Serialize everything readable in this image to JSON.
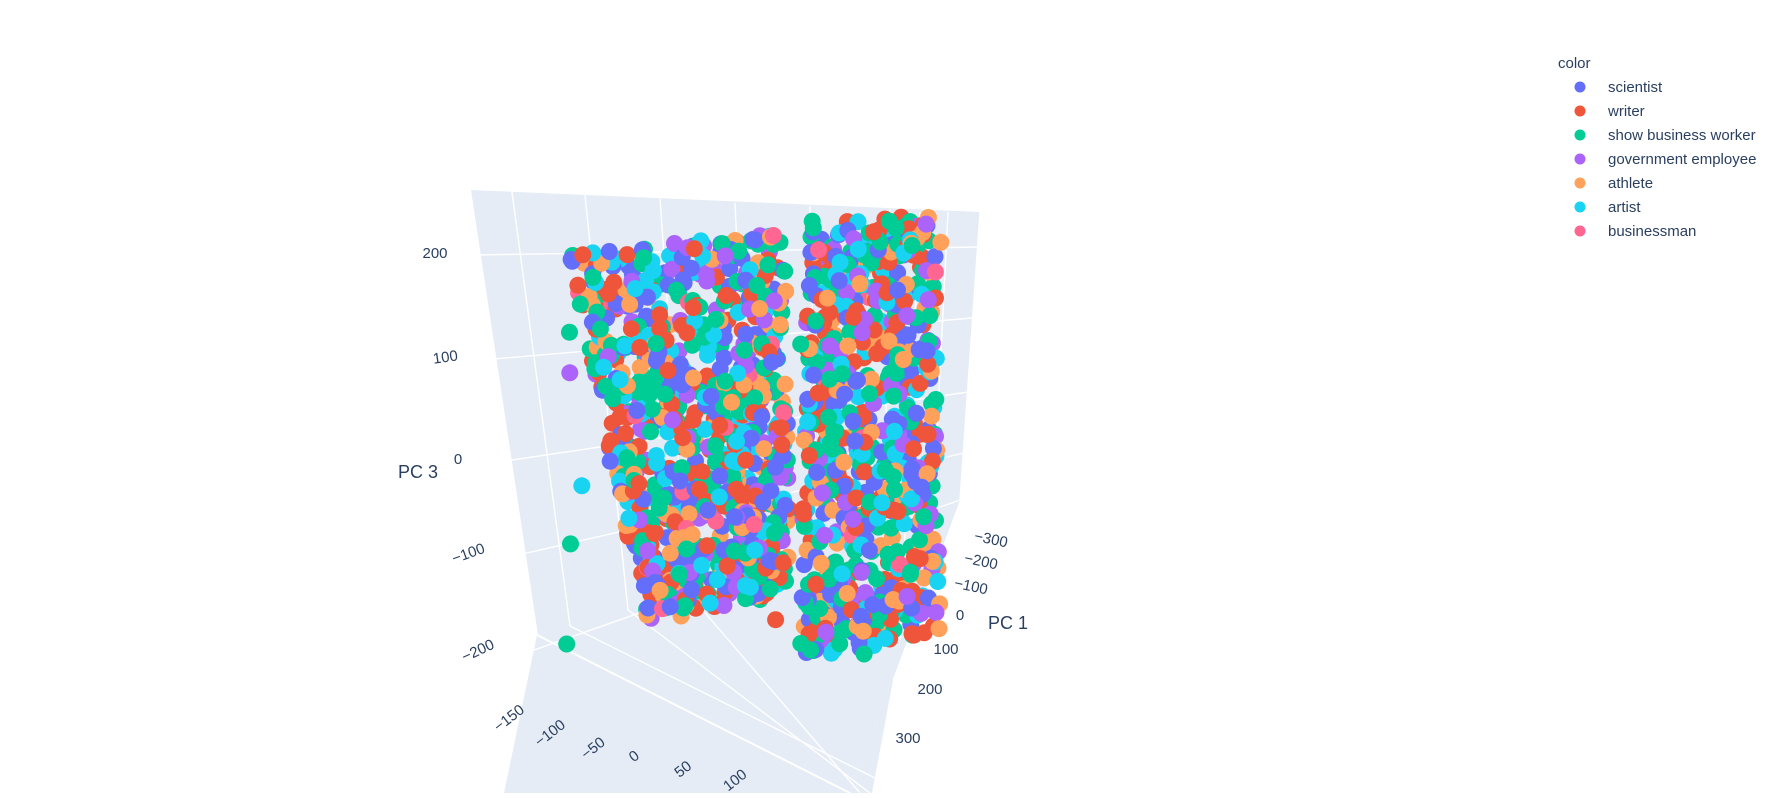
{
  "chart_data": {
    "type": "scatter",
    "dimensions": 3,
    "legend": {
      "title": "color",
      "placement": "top-right",
      "entries": [
        {
          "name": "scientist",
          "color": "#636efa"
        },
        {
          "name": "writer",
          "color": "#EF553B"
        },
        {
          "name": "show business worker",
          "color": "#00cc96"
        },
        {
          "name": "government employee",
          "color": "#ab63fa"
        },
        {
          "name": "athlete",
          "color": "#FFA15A"
        },
        {
          "name": "artist",
          "color": "#19d3f3"
        },
        {
          "name": "businessman",
          "color": "#FF6692"
        }
      ]
    },
    "axes": {
      "x": {
        "label": "PC 1",
        "range": [
          -300,
          300
        ],
        "ticks": [
          "−300",
          "−200",
          "−100",
          "0",
          "100",
          "200",
          "300"
        ]
      },
      "y": {
        "label": "",
        "range": [
          -150,
          100
        ],
        "ticks": [
          "−150",
          "−100",
          "−50",
          "0",
          "50",
          "100"
        ]
      },
      "z": {
        "label": "PC 3",
        "range": [
          -200,
          200
        ],
        "ticks": [
          "−200",
          "−100",
          "0",
          "100",
          "200"
        ]
      }
    },
    "clusters": [
      {
        "pc1_range": [
          -300,
          300
        ],
        "pc2_range": [
          -60,
          80
        ],
        "pc3_range": [
          -200,
          220
        ]
      },
      {
        "pc1_range": [
          -300,
          300
        ],
        "pc2_range": [
          50,
          150
        ],
        "pc3_range": [
          -230,
          230
        ]
      }
    ],
    "grid": true,
    "background": "#e5ecf6"
  }
}
